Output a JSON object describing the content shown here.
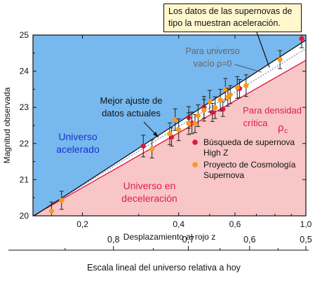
{
  "chart_data": {
    "type": "scatter",
    "title": "",
    "xlabel": "Desplazamiento al rojo z",
    "ylabel": "Magnitud observada",
    "x_scale": "log",
    "xlim": [
      0.14,
      1.0
    ],
    "ylim": [
      20,
      25
    ],
    "x_ticks": [
      {
        "value": 0.2,
        "label": "0,2"
      },
      {
        "value": 0.4,
        "label": "0,4"
      },
      {
        "value": 0.6,
        "label": "0,6"
      },
      {
        "value": 1.0,
        "label": "1,0"
      }
    ],
    "y_ticks": [
      20,
      21,
      22,
      23,
      24,
      25
    ],
    "secondary_axis": {
      "label": "Escala lineal del universo relativa a hoy",
      "ticks": [
        {
          "value": 0.8,
          "label": "0,8"
        },
        {
          "value": 0.7,
          "label": "0,7"
        },
        {
          "value": 0.6,
          "label": "0,6"
        },
        {
          "value": 0.5,
          "label": "0,5"
        }
      ]
    },
    "regions": {
      "accelerating": {
        "label_lines": [
          "Universo",
          "acelerado"
        ],
        "color": "#77b8ee"
      },
      "decelerating": {
        "label_lines": [
          "Universo en",
          "deceleración"
        ],
        "color": "#f8c6c6"
      }
    },
    "lines": {
      "best_fit": {
        "label_lines": [
          "Mejor ajuste de",
          "datos actuales"
        ],
        "color": "#111111",
        "points": [
          [
            0.14,
            19.98
          ],
          [
            1.0,
            24.86
          ]
        ]
      },
      "empty_universe": {
        "label_lines": [
          "Para universo",
          "vacío ρ=0"
        ],
        "color": "#555555",
        "points": [
          [
            0.14,
            20.0
          ],
          [
            1.0,
            24.62
          ]
        ]
      },
      "critical_density": {
        "label_lines": [
          "Para densidad",
          "crítica"
        ],
        "symbol": "ρ",
        "symbol_sub": "c",
        "color": "#e01b4c",
        "points": [
          [
            0.14,
            20.0
          ],
          [
            1.0,
            24.3
          ]
        ]
      }
    },
    "series": [
      {
        "name": "Búsqueda de supernova High Z",
        "color": "#e0173d",
        "points": [
          {
            "x": 0.31,
            "y": 21.93,
            "err": 0.3
          },
          {
            "x": 0.38,
            "y": 22.18,
            "err": 0.25
          },
          {
            "x": 0.43,
            "y": 22.72,
            "err": 0.3
          },
          {
            "x": 0.44,
            "y": 22.57,
            "err": 0.3
          },
          {
            "x": 0.48,
            "y": 23.0,
            "err": 0.3
          },
          {
            "x": 0.51,
            "y": 22.86,
            "err": 0.25
          },
          {
            "x": 0.55,
            "y": 22.95,
            "err": 0.2
          },
          {
            "x": 0.62,
            "y": 23.52,
            "err": 0.25
          },
          {
            "x": 0.97,
            "y": 24.9,
            "err": 0.25
          }
        ]
      },
      {
        "name": "Proyecto de Cosmología Supernova",
        "color": "#f59a1e",
        "points": [
          {
            "x": 0.16,
            "y": 20.13,
            "err": 0.25
          },
          {
            "x": 0.172,
            "y": 20.43,
            "err": 0.25
          },
          {
            "x": 0.33,
            "y": 21.85,
            "err": 0.25
          },
          {
            "x": 0.375,
            "y": 22.27,
            "err": 0.3
          },
          {
            "x": 0.39,
            "y": 22.66,
            "err": 0.3
          },
          {
            "x": 0.4,
            "y": 22.38,
            "err": 0.3
          },
          {
            "x": 0.43,
            "y": 22.55,
            "err": 0.3
          },
          {
            "x": 0.45,
            "y": 22.55,
            "err": 0.25
          },
          {
            "x": 0.46,
            "y": 22.77,
            "err": 0.3
          },
          {
            "x": 0.48,
            "y": 22.92,
            "err": 0.3
          },
          {
            "x": 0.5,
            "y": 23.17,
            "err": 0.3
          },
          {
            "x": 0.52,
            "y": 22.99,
            "err": 0.3
          },
          {
            "x": 0.54,
            "y": 23.2,
            "err": 0.3
          },
          {
            "x": 0.56,
            "y": 23.5,
            "err": 0.3
          },
          {
            "x": 0.57,
            "y": 23.28,
            "err": 0.25
          },
          {
            "x": 0.58,
            "y": 23.35,
            "err": 0.25
          },
          {
            "x": 0.61,
            "y": 23.55,
            "err": 0.3
          },
          {
            "x": 0.65,
            "y": 23.6,
            "err": 0.3
          },
          {
            "x": 0.83,
            "y": 24.32,
            "err": 0.25
          }
        ]
      }
    ],
    "legend": [
      {
        "label_lines": [
          "Búsqueda de supernova",
          "High Z"
        ],
        "color": "#e0173d"
      },
      {
        "label_lines": [
          "Proyecto de Cosmología",
          "Supernova"
        ],
        "color": "#f59a1e"
      }
    ],
    "callout_lines": [
      "Los datos de las supernovas de",
      "tipo la muestran aceleración."
    ]
  }
}
